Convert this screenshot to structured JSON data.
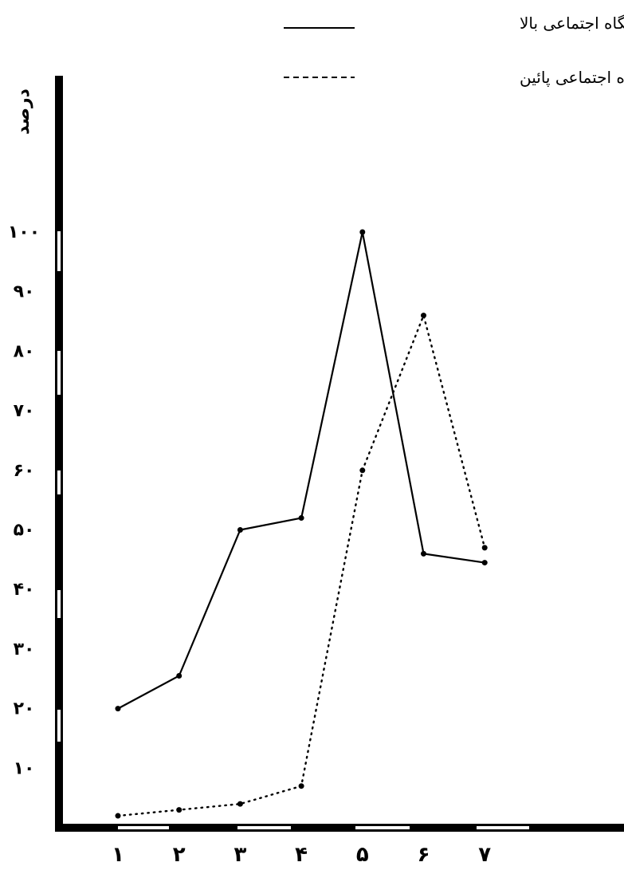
{
  "chart_data": {
    "type": "line",
    "title": "",
    "xlabel": "",
    "ylabel": "درصد",
    "x": [
      1,
      2,
      3,
      4,
      5,
      6,
      7
    ],
    "x_tick_labels": [
      "۱",
      "۲",
      "۳",
      "۴",
      "۵",
      "۶",
      "۷"
    ],
    "y_ticks": [
      10,
      20,
      30,
      40,
      50,
      60,
      70,
      80,
      90,
      100
    ],
    "y_tick_labels": [
      "۱۰",
      "۲۰",
      "۳۰",
      "۴۰",
      "۵۰",
      "۶۰",
      "۷۰",
      "۸۰",
      "۹۰",
      "۱۰۰"
    ],
    "ylim": [
      0,
      100
    ],
    "grid": false,
    "legend_position": "top-right",
    "series": [
      {
        "name": "پایگاه اجتماعی بالا",
        "values": [
          20,
          25.5,
          50,
          52,
          100,
          46,
          44.5
        ],
        "line_style": "solid",
        "color": "#000000"
      },
      {
        "name": "پایگاه اجتماعی پائین",
        "values": [
          2,
          3,
          4,
          7,
          60,
          86,
          47
        ],
        "line_style": "dotted",
        "color": "#000000"
      }
    ]
  },
  "colors": {
    "ink": "#000000",
    "background": "#ffffff"
  }
}
